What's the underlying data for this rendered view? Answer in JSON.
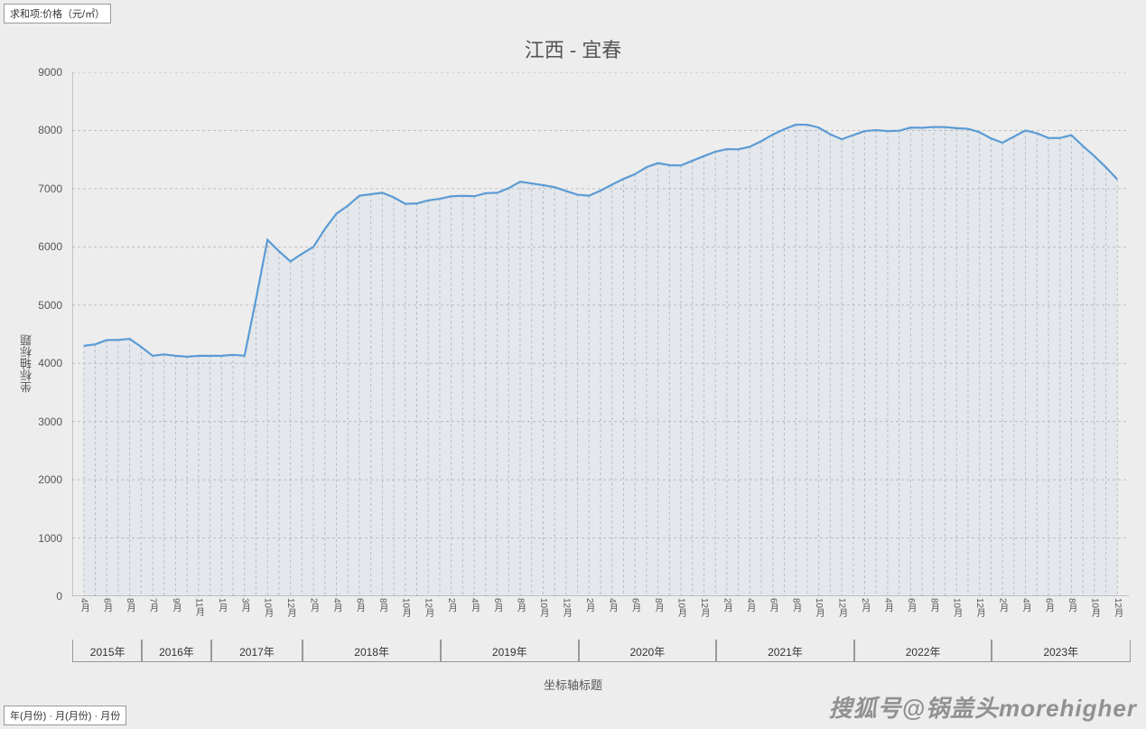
{
  "legend_top": "求和项:价格（元/㎡）",
  "legend_bottom": "年(月份)  ·  月(月份)  ·  月份",
  "title": "江西 - 宜春",
  "y_axis_label": "坐标轴标题",
  "x_axis_label": "坐标轴标题",
  "watermark": "搜狐号@锅盖头morehigher",
  "chart": {
    "type": "line-area",
    "line_color": "#5b9bd5",
    "line_width": 2.2,
    "area_fill": "rgba(91,155,213,0.06)",
    "grid_color": "#bfbfbf",
    "grid_dash": "3,3",
    "axis_color": "#999999",
    "y_min": 0,
    "y_max": 9000,
    "y_tick_step": 1000,
    "y_ticks": [
      0,
      1000,
      2000,
      3000,
      4000,
      5000,
      6000,
      7000,
      8000,
      9000
    ],
    "tick_font_size": 12,
    "month_font_size": 10,
    "year_font_size": 12,
    "groups": [
      {
        "year": "2015年",
        "months": [
          "4月",
          "6月",
          "8月"
        ],
        "values": [
          4300,
          4400,
          4420
        ]
      },
      {
        "year": "2016年",
        "months": [
          "7月",
          "9月",
          "11月"
        ],
        "values": [
          4130,
          4130,
          4130
        ]
      },
      {
        "year": "2017年",
        "months": [
          "1月",
          "3月",
          "10月",
          "12月"
        ],
        "values": [
          4130,
          4130,
          6120,
          5750
        ]
      },
      {
        "year": "2018年",
        "months": [
          "2月",
          "4月",
          "6月",
          "8月",
          "10月",
          "12月"
        ],
        "values": [
          6000,
          6570,
          6880,
          6930,
          6740,
          6800
        ]
      },
      {
        "year": "2019年",
        "months": [
          "2月",
          "4月",
          "6月",
          "8月",
          "10月",
          "12月"
        ],
        "values": [
          6870,
          6870,
          6930,
          7120,
          7060,
          6960
        ]
      },
      {
        "year": "2020年",
        "months": [
          "2月",
          "4月",
          "6月",
          "8月",
          "10月",
          "12月"
        ],
        "values": [
          6880,
          7070,
          7250,
          7440,
          7400,
          7560
        ]
      },
      {
        "year": "2021年",
        "months": [
          "2月",
          "4月",
          "6月",
          "8月",
          "10月",
          "12月"
        ],
        "values": [
          7680,
          7720,
          7930,
          8100,
          8050,
          7850
        ]
      },
      {
        "year": "2022年",
        "months": [
          "2月",
          "4月",
          "6月",
          "8月",
          "10月",
          "12月"
        ],
        "values": [
          7990,
          7990,
          8050,
          8060,
          8040,
          7970
        ]
      },
      {
        "year": "2023年",
        "months": [
          "2月",
          "4月",
          "6月",
          "8月",
          "10月",
          "12月"
        ],
        "values": [
          7790,
          8000,
          7870,
          7920,
          7560,
          7160
        ]
      }
    ],
    "intermediate_values_between_ticks": true
  }
}
